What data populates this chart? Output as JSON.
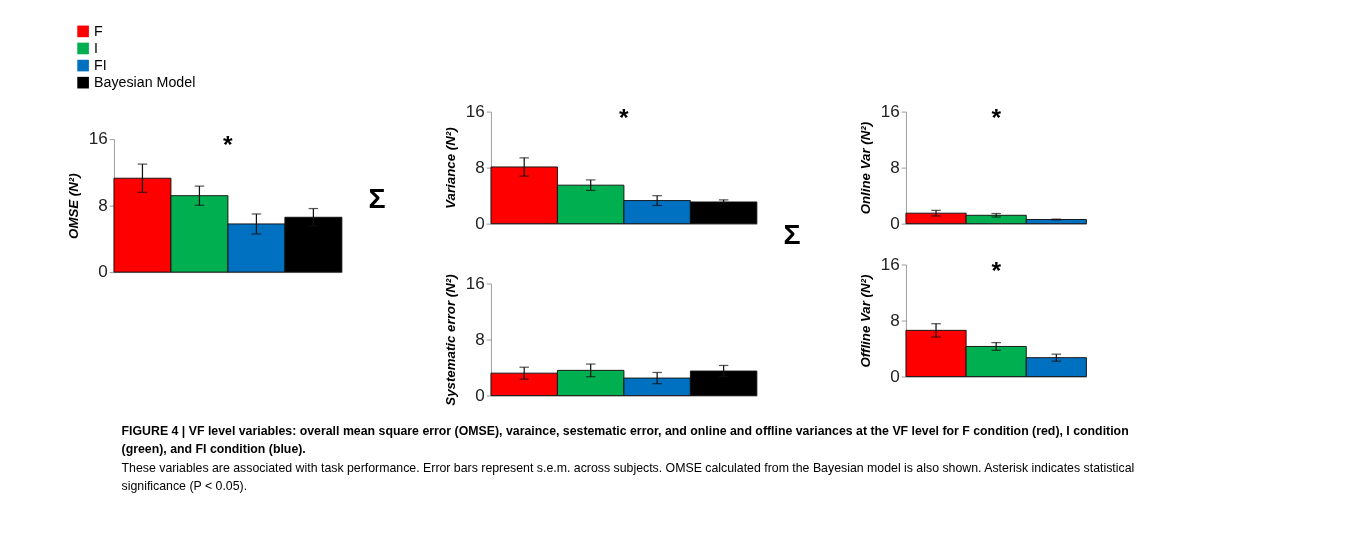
{
  "chart_data": [
    {
      "type": "bar",
      "ylabel": "OMSE (N²)",
      "categories": [
        null
      ],
      "ylim": [
        0,
        16
      ],
      "yticks": [
        0,
        8,
        16
      ],
      "tick_labels": "y",
      "legend": "top left",
      "annotations": [
        "*",
        "Σ"
      ],
      "series": [
        {
          "name": "F",
          "color": "#ff0000",
          "values": [
            11.3
          ],
          "errors": [
            1.7
          ]
        },
        {
          "name": "I",
          "color": "#00b050",
          "values": [
            9.2
          ],
          "errors": [
            1.15
          ]
        },
        {
          "name": "FI",
          "color": "#0070c0",
          "values": [
            5.8
          ],
          "errors": [
            1.2
          ]
        },
        {
          "name": "Bayesian Model",
          "color": "#000000",
          "values": [
            6.6
          ],
          "errors": [
            1.05
          ]
        }
      ]
    },
    {
      "type": "bar",
      "ylabel": "Variance (N²)",
      "categories": [
        null
      ],
      "ylim": [
        0,
        16
      ],
      "yticks": [
        0,
        8,
        16
      ],
      "tick_labels": "y",
      "annotations": [
        "*",
        "Σ"
      ],
      "series": [
        {
          "color": "#ff0000",
          "values": [
            8.1
          ],
          "errors": [
            1.3
          ]
        },
        {
          "color": "#00b050",
          "values": [
            5.5
          ],
          "errors": [
            0.75
          ]
        },
        {
          "color": "#0070c0",
          "values": [
            3.3
          ],
          "errors": [
            0.7
          ]
        },
        {
          "color": "#000000",
          "values": [
            3.1
          ],
          "errors": [
            0.3
          ]
        }
      ]
    },
    {
      "type": "bar",
      "ylabel": "Systematic error (N²)",
      "categories": [
        null
      ],
      "ylim": [
        0,
        16
      ],
      "yticks": [
        0,
        8,
        16
      ],
      "tick_labels": "y",
      "series": [
        {
          "color": "#ff0000",
          "values": [
            3.2
          ],
          "errors": [
            0.85
          ]
        },
        {
          "color": "#00b050",
          "values": [
            3.6
          ],
          "errors": [
            0.9
          ]
        },
        {
          "color": "#0070c0",
          "values": [
            2.5
          ],
          "errors": [
            0.8
          ]
        },
        {
          "color": "#000000",
          "values": [
            3.5
          ],
          "errors": [
            0.8
          ]
        }
      ]
    },
    {
      "type": "bar",
      "ylabel": "Online Var (N²)",
      "categories": [
        null
      ],
      "ylim": [
        0,
        16
      ],
      "yticks": [
        0,
        8,
        16
      ],
      "tick_labels": "y",
      "annotations": [
        "*"
      ],
      "series": [
        {
          "color": "#ff0000",
          "values": [
            1.5
          ],
          "errors": [
            0.4
          ]
        },
        {
          "color": "#00b050",
          "values": [
            1.2
          ],
          "errors": [
            0.25
          ]
        },
        {
          "color": "#0070c0",
          "values": [
            0.6
          ],
          "errors": [
            0.05
          ]
        }
      ]
    },
    {
      "type": "bar",
      "ylabel": "Offline Var (N²)",
      "categories": [
        null
      ],
      "ylim": [
        0,
        16
      ],
      "yticks": [
        0,
        8,
        16
      ],
      "tick_labels": "y",
      "annotations": [
        "*"
      ],
      "series": [
        {
          "color": "#ff0000",
          "values": [
            6.6
          ],
          "errors": [
            0.95
          ]
        },
        {
          "color": "#00b050",
          "values": [
            4.3
          ],
          "errors": [
            0.55
          ]
        },
        {
          "color": "#0070c0",
          "values": [
            2.7
          ],
          "errors": [
            0.5
          ]
        }
      ]
    },
    {
      "type": "other",
      "annotations": [
        "FIGURE 4 | VF level variables: overall mean square error (OMSE), varaince, sestematic error, and online and offline variances at the VF level for F condition (red), I condition (green), and FI condition (blue).",
        "These variables are associated with task performance. Error bars represent s.e.m. across subjects. OMSE calculated from the Bayesian model is also shown. Asterisk indicates statistical significance (P < 0.05)."
      ]
    }
  ]
}
